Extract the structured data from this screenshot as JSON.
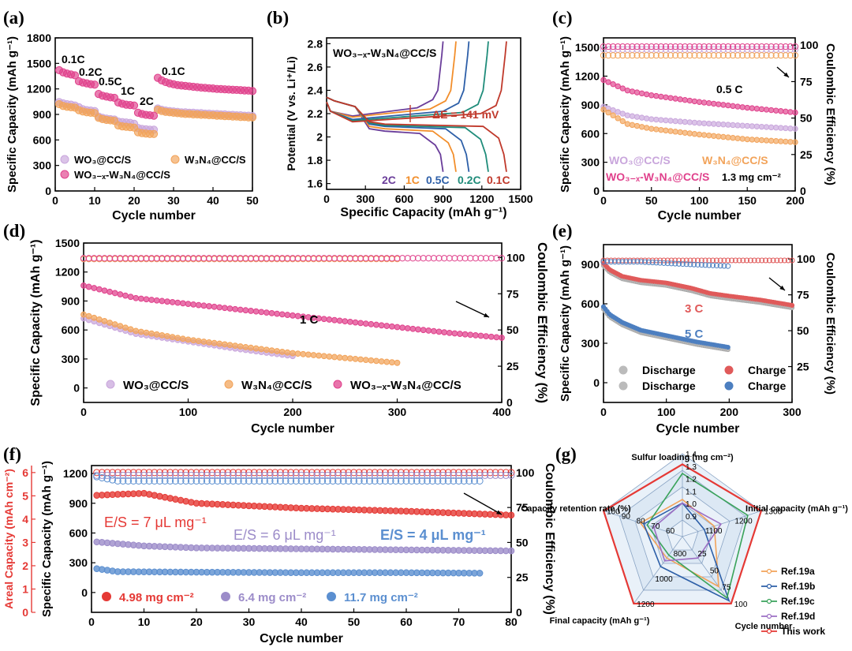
{
  "figure": {
    "panel_labels": [
      "(a)",
      "(b)",
      "(c)",
      "(d)",
      "(e)",
      "(f)",
      "(g)"
    ]
  },
  "chart_data": [
    {
      "id": "a",
      "type": "scatter",
      "xlabel": "Cycle number",
      "ylabel": "Specific Capacity (mAh g⁻¹)",
      "xlim": [
        0,
        50
      ],
      "ylim": [
        0,
        1800
      ],
      "xticks": [
        0,
        10,
        20,
        30,
        40,
        50
      ],
      "yticks": [
        0,
        300,
        600,
        900,
        1200,
        1500,
        1800
      ],
      "rate_labels": [
        "0.1C",
        "0.2C",
        "0.5C",
        "1C",
        "2C",
        "0.1C"
      ],
      "legend": [
        "WO₃@CC/S",
        "W₃N₄@CC/S",
        "WO₃₋ₓ-W₃N₄@CC/S"
      ],
      "series": [
        {
          "name": "WO3@CC/S",
          "color": "#c9a6dc",
          "values": [
            1045,
            1030,
            1020,
            1015,
            1005,
            985,
            960,
            950,
            945,
            940,
            875,
            860,
            850,
            845,
            840,
            815,
            810,
            805,
            800,
            790,
            740,
            730,
            725,
            720,
            720,
            970,
            955,
            945,
            940,
            935,
            930,
            925,
            925,
            920,
            920,
            915,
            915,
            910,
            910,
            905,
            905,
            900,
            900,
            895,
            895,
            890,
            890,
            885,
            885,
            880
          ]
        },
        {
          "name": "W3N4@CC/S",
          "color": "#f2a35a",
          "values": [
            1020,
            1000,
            990,
            985,
            980,
            950,
            935,
            925,
            920,
            915,
            860,
            845,
            835,
            830,
            825,
            770,
            760,
            755,
            750,
            745,
            690,
            680,
            675,
            670,
            670,
            955,
            940,
            930,
            925,
            920,
            915,
            910,
            905,
            905,
            900,
            900,
            895,
            895,
            890,
            890,
            885,
            885,
            880,
            880,
            875,
            875,
            870,
            870,
            865,
            865
          ]
        },
        {
          "name": "WO3-x-W3N4@CC/S",
          "color": "#e0418c",
          "values": [
            1420,
            1395,
            1380,
            1370,
            1360,
            1290,
            1275,
            1265,
            1255,
            1250,
            1140,
            1120,
            1110,
            1100,
            1095,
            1040,
            1025,
            1015,
            1010,
            1005,
            920,
            905,
            895,
            890,
            885,
            1330,
            1300,
            1280,
            1265,
            1255,
            1245,
            1240,
            1235,
            1230,
            1225,
            1220,
            1215,
            1212,
            1208,
            1205,
            1200,
            1198,
            1195,
            1192,
            1190,
            1188,
            1185,
            1182,
            1180,
            1175
          ]
        }
      ]
    },
    {
      "id": "b",
      "type": "line",
      "xlabel": "Specific Capacity (mAh g⁻¹)",
      "ylabel": "Potential (V vs. Li⁺/Li)",
      "xlim": [
        0,
        1500
      ],
      "ylim": [
        1.55,
        2.85
      ],
      "xticks": [
        0,
        300,
        600,
        900,
        1200,
        1500
      ],
      "yticks": [
        1.6,
        1.8,
        2.0,
        2.2,
        2.4,
        2.6,
        2.8
      ],
      "label": "WO₃₋ₓ-W₃N₄@CC/S",
      "annotation": "ΔE = 141 mV",
      "series": [
        {
          "name": "2C",
          "color": "#6a3d9a",
          "cap": 900,
          "dis_plat": 2.05,
          "chg_plat": 2.2
        },
        {
          "name": "1C",
          "color": "#f28e2b",
          "cap": 1000,
          "dis_plat": 2.07,
          "chg_plat": 2.19
        },
        {
          "name": "0.5C",
          "color": "#2d5fa8",
          "cap": 1100,
          "dis_plat": 2.09,
          "chg_plat": 2.17
        },
        {
          "name": "0.2C",
          "color": "#1f8c7a",
          "cap": 1250,
          "dis_plat": 2.1,
          "chg_plat": 2.16
        },
        {
          "name": "0.1C",
          "color": "#c0392b",
          "cap": 1390,
          "dis_plat": 2.11,
          "chg_plat": 2.15
        }
      ]
    },
    {
      "id": "c",
      "type": "scatter",
      "xlabel": "Cycle number",
      "ylabel": "Specific Capacity (mAh g⁻¹)",
      "y2label": "Coulombic Efficiency (%)",
      "xlim": [
        0,
        200
      ],
      "ylim": [
        0,
        1600
      ],
      "y2lim": [
        0,
        105
      ],
      "xticks": [
        0,
        50,
        100,
        150,
        200
      ],
      "yticks": [
        0,
        300,
        600,
        900,
        1200,
        1500
      ],
      "y2ticks": [
        0,
        25,
        50,
        75,
        100
      ],
      "rate": "0.5 C",
      "loading": "1.3 mg cm⁻²",
      "legend": [
        "WO₃@CC/S",
        "W₃N₄@CC/S",
        "WO₃₋ₓ-W₃N₄@CC/S"
      ],
      "series": [
        {
          "name": "WO3@CC/S",
          "color": "#c9a6dc",
          "x": [
            0,
            25,
            50,
            100,
            150,
            200
          ],
          "values": [
            880,
            790,
            750,
            710,
            680,
            650
          ],
          "ce": [
            97,
            97,
            97,
            97,
            97,
            97
          ]
        },
        {
          "name": "W3N4@CC/S",
          "color": "#f2a35a",
          "x": [
            0,
            25,
            50,
            100,
            150,
            200
          ],
          "values": [
            850,
            700,
            650,
            590,
            540,
            510
          ],
          "ce": [
            93,
            93,
            93,
            93,
            93,
            93
          ]
        },
        {
          "name": "WO3-x-W3N4@CC/S",
          "color": "#e0418c",
          "x": [
            0,
            25,
            50,
            100,
            150,
            200
          ],
          "values": [
            1160,
            1050,
            1000,
            930,
            870,
            820
          ],
          "ce": [
            99,
            99,
            99,
            99,
            99,
            99
          ]
        }
      ]
    },
    {
      "id": "d",
      "type": "scatter",
      "xlabel": "Cycle number",
      "ylabel": "Specific Capacity (mAh g⁻¹)",
      "y2label": "Coulombic Efficiency (%)",
      "xlim": [
        0,
        400
      ],
      "ylim": [
        -150,
        1500
      ],
      "y2lim": [
        0,
        110
      ],
      "xticks": [
        0,
        100,
        200,
        300,
        400
      ],
      "yticks": [
        0,
        300,
        600,
        900,
        1200,
        1500
      ],
      "y2ticks": [
        0,
        25,
        50,
        75,
        100
      ],
      "rate": "1 C",
      "legend": [
        "WO₃@CC/S",
        "W₃N₄@CC/S",
        "WO₃₋ₓ-W₃N₄@CC/S"
      ],
      "series": [
        {
          "name": "WO3@CC/S",
          "color": "#c9a6dc",
          "x": [
            0,
            50,
            100,
            150,
            200
          ],
          "values": [
            720,
            560,
            480,
            400,
            330
          ],
          "ce": [
            99,
            99,
            99,
            99,
            99
          ]
        },
        {
          "name": "W3N4@CC/S",
          "color": "#f2a35a",
          "x": [
            0,
            50,
            100,
            150,
            200,
            250,
            300
          ],
          "values": [
            760,
            590,
            500,
            430,
            360,
            310,
            260
          ],
          "ce": [
            99,
            99,
            99,
            99,
            99,
            99,
            99
          ]
        },
        {
          "name": "WO3-x-W3N4@CC/S",
          "color": "#e0418c",
          "x": [
            0,
            50,
            100,
            150,
            200,
            250,
            300,
            350,
            400
          ],
          "values": [
            1060,
            930,
            870,
            810,
            750,
            690,
            630,
            570,
            520
          ],
          "ce": [
            99.5,
            99.5,
            99.5,
            99.5,
            99.5,
            99.5,
            99.5,
            99.5,
            99.5
          ]
        }
      ]
    },
    {
      "id": "e",
      "type": "scatter",
      "xlabel": "Cycle number",
      "ylabel": "Specific Capacity (mAh g⁻¹)",
      "y2label": "Coulombic Efficiency (%)",
      "xlim": [
        0,
        300
      ],
      "ylim": [
        -150,
        1050
      ],
      "y2lim": [
        0,
        110
      ],
      "xticks": [
        0,
        100,
        200,
        300
      ],
      "yticks": [
        0,
        300,
        600,
        900
      ],
      "y2ticks": [
        25,
        50,
        75,
        100
      ],
      "labels": [
        "3 C",
        "5 C"
      ],
      "legend": [
        "Discharge",
        "Charge",
        "Discharge",
        "Charge"
      ],
      "series": [
        {
          "name": "3 C",
          "color": "#e05a5a",
          "x": [
            0,
            10,
            30,
            60,
            100,
            140,
            170,
            200,
            250,
            300
          ],
          "values": [
            890,
            840,
            790,
            760,
            740,
            700,
            660,
            640,
            610,
            570
          ],
          "ce": [
            99,
            99,
            99,
            99,
            99,
            99,
            99,
            99,
            99,
            99
          ]
        },
        {
          "name": "5 C",
          "color": "#4d7fc0",
          "x": [
            0,
            10,
            30,
            60,
            100,
            150,
            200
          ],
          "values": [
            560,
            500,
            440,
            380,
            340,
            290,
            250
          ],
          "ce": [
            98,
            98,
            98,
            98,
            97,
            96,
            95
          ]
        }
      ]
    },
    {
      "id": "f",
      "type": "scatter",
      "xlabel": "Cycle number",
      "ylabel": "Specific Capacity (mAh g⁻¹)",
      "y2label": "Coulombic Efficiency (%)",
      "y3label": "Areal Capacity (mAh cm⁻²)",
      "xlim": [
        0,
        80
      ],
      "ylim": [
        -200,
        1280
      ],
      "y2lim": [
        0,
        105
      ],
      "y3lim": [
        0,
        6.3
      ],
      "xticks": [
        0,
        10,
        20,
        30,
        40,
        50,
        60,
        70,
        80
      ],
      "yticks": [
        0,
        300,
        600,
        900,
        1200
      ],
      "y2ticks": [
        0,
        25,
        50,
        75,
        100
      ],
      "y3ticks": [
        0,
        1,
        2,
        3,
        4,
        5,
        6
      ],
      "es_labels": [
        "E/S = 7 μL mg⁻¹",
        "E/S = 6 μL mg⁻¹",
        "E/S = 4 μL mg⁻¹"
      ],
      "legend": [
        "4.98 mg cm⁻²",
        "6.4 mg cm⁻²",
        "11.7 mg cm⁻²"
      ],
      "series": [
        {
          "name": "4.98",
          "color": "#e53935",
          "x": [
            1,
            5,
            10,
            20,
            40,
            60,
            80
          ],
          "values": [
            980,
            990,
            1000,
            900,
            850,
            820,
            780
          ],
          "ce": [
            100,
            100,
            100,
            100,
            100,
            100,
            100
          ]
        },
        {
          "name": "6.4",
          "color": "#9c8cc9",
          "x": [
            1,
            10,
            20,
            40,
            60,
            80
          ],
          "values": [
            510,
            470,
            450,
            440,
            430,
            420
          ],
          "ce": [
            98,
            98,
            98,
            98,
            98,
            98
          ]
        },
        {
          "name": "11.7",
          "color": "#5b8fd0",
          "x": [
            1,
            5,
            20,
            40,
            60,
            74
          ],
          "values": [
            240,
            210,
            205,
            200,
            200,
            195
          ],
          "ce": [
            97,
            94,
            94,
            94,
            94,
            94
          ]
        }
      ]
    },
    {
      "id": "g",
      "type": "radar",
      "axes": [
        {
          "name": "Sulfur loading (mg cm⁻²)",
          "ticks": [
            "0.9",
            "1.0",
            "1.1",
            "1.2",
            "1.3",
            "1.4"
          ]
        },
        {
          "name": "Initial capacity (mAh g⁻¹)",
          "ticks": [
            "1100",
            "1200",
            "1300"
          ]
        },
        {
          "name": "Cycle number",
          "ticks": [
            "25",
            "50",
            "75",
            "100"
          ]
        },
        {
          "name": "Final capacity (mAh g⁻¹)",
          "ticks": [
            "800",
            "1000",
            "1200"
          ]
        },
        {
          "name": "Capacity retention rate (%)",
          "ticks": [
            "60",
            "70",
            "80",
            "90",
            "100"
          ]
        }
      ],
      "series": [
        {
          "name": "Ref.19a",
          "color": "#f2a35a",
          "values": [
            0.35,
            0.3,
            0.7,
            0.2,
            0.45
          ]
        },
        {
          "name": "Ref.19b",
          "color": "#2d5fa8",
          "values": [
            0.3,
            0.15,
            0.95,
            0.35,
            0.4
          ]
        },
        {
          "name": "Ref.19c",
          "color": "#3aa35b",
          "values": [
            0.72,
            0.8,
            0.9,
            0.15,
            0.35
          ]
        },
        {
          "name": "Ref.19d",
          "color": "#9c6fc4",
          "values": [
            0.3,
            0.4,
            0.2,
            0.25,
            0.25
          ]
        },
        {
          "name": "This work",
          "color": "#e53935",
          "values": [
            0.85,
            1.0,
            1.0,
            1.0,
            1.0
          ]
        }
      ]
    }
  ]
}
